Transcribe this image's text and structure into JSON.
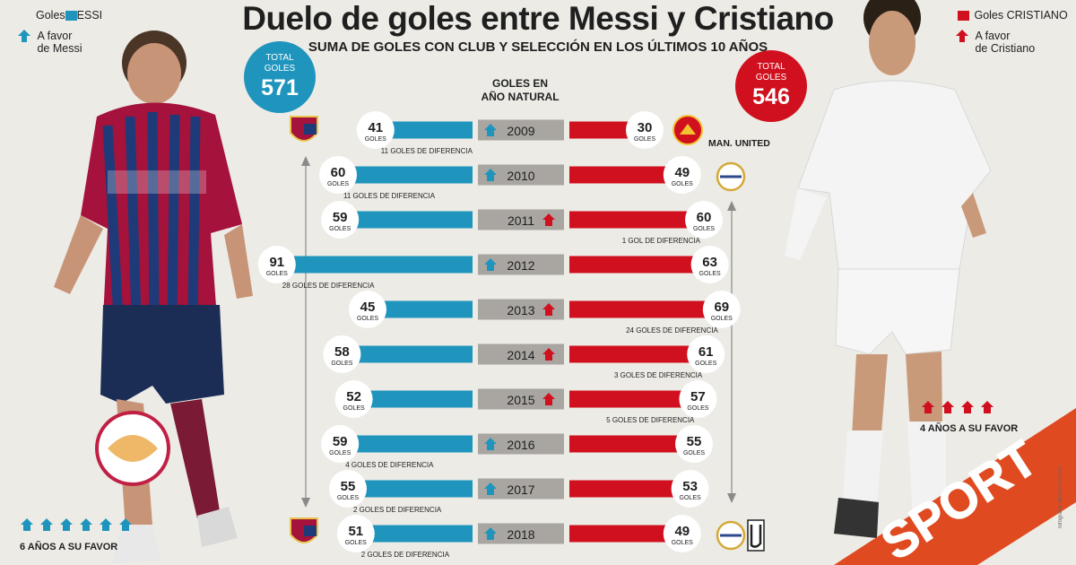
{
  "title": "Duelo de goles entre Messi y Cristiano",
  "subtitle": "SUMA DE GOLES CON CLUB Y SELECCIÓN EN LOS ÚLTIMOS 10 AÑOS",
  "legend": {
    "messi_label": "Goles",
    "messi_suffix": "ESSI",
    "messi_favor": [
      "A favor",
      "de Messi"
    ],
    "cristiano_label": "Goles CRISTIANO",
    "cristiano_favor": [
      "A favor",
      "de Cristiano"
    ]
  },
  "totals": {
    "label": [
      "TOTAL",
      "GOLES"
    ],
    "messi": "571",
    "cristiano": "546"
  },
  "column_header": [
    "GOLES EN",
    "AÑO NATURAL"
  ],
  "club_labels": {
    "man_united": "MAN. UNITED"
  },
  "summary": {
    "messi": "6 AÑOS A SU FAVOR",
    "cristiano": "4 AÑOS A SU FAVOR"
  },
  "brand": "SPORT",
  "credits": "Infografía: MARC CREUS",
  "colors": {
    "messi": "#1f95bd",
    "cristiano": "#d0101e",
    "year_box": "#a9a6a2",
    "background": "#ecebe6"
  },
  "icons": {
    "favor": "up-arrow-icon",
    "messi_club": "barcelona-crest-icon",
    "cristiano_clubs": [
      "man-united-crest-icon",
      "real-madrid-crest-icon",
      "juventus-logo-icon"
    ]
  },
  "chart_data": {
    "type": "bar",
    "categories": [
      "2009",
      "2010",
      "2011",
      "2012",
      "2013",
      "2014",
      "2015",
      "2016",
      "2017",
      "2018"
    ],
    "series": [
      {
        "name": "MESSI",
        "values": [
          41,
          60,
          59,
          91,
          45,
          58,
          52,
          59,
          55,
          51
        ]
      },
      {
        "name": "CRISTIANO",
        "values": [
          30,
          49,
          60,
          63,
          69,
          61,
          57,
          55,
          53,
          49
        ]
      }
    ],
    "unit": "GOLES",
    "differences": [
      "11 GOLES DE DIFERENCIA",
      "11 GOLES DE DIFERENCIA",
      "1 GOL DE DIFERENCIA",
      "28 GOLES DE DIFERENCIA",
      "24 GOLES DE DIFERENCIA",
      "3 GOLES DE DIFERENCIA",
      "5 GOLES DE DIFERENCIA",
      "4 GOLES DE DIFERENCIA",
      "2 GOLES DE DIFERENCIA",
      "2 GOLES DE DIFERENCIA"
    ]
  }
}
